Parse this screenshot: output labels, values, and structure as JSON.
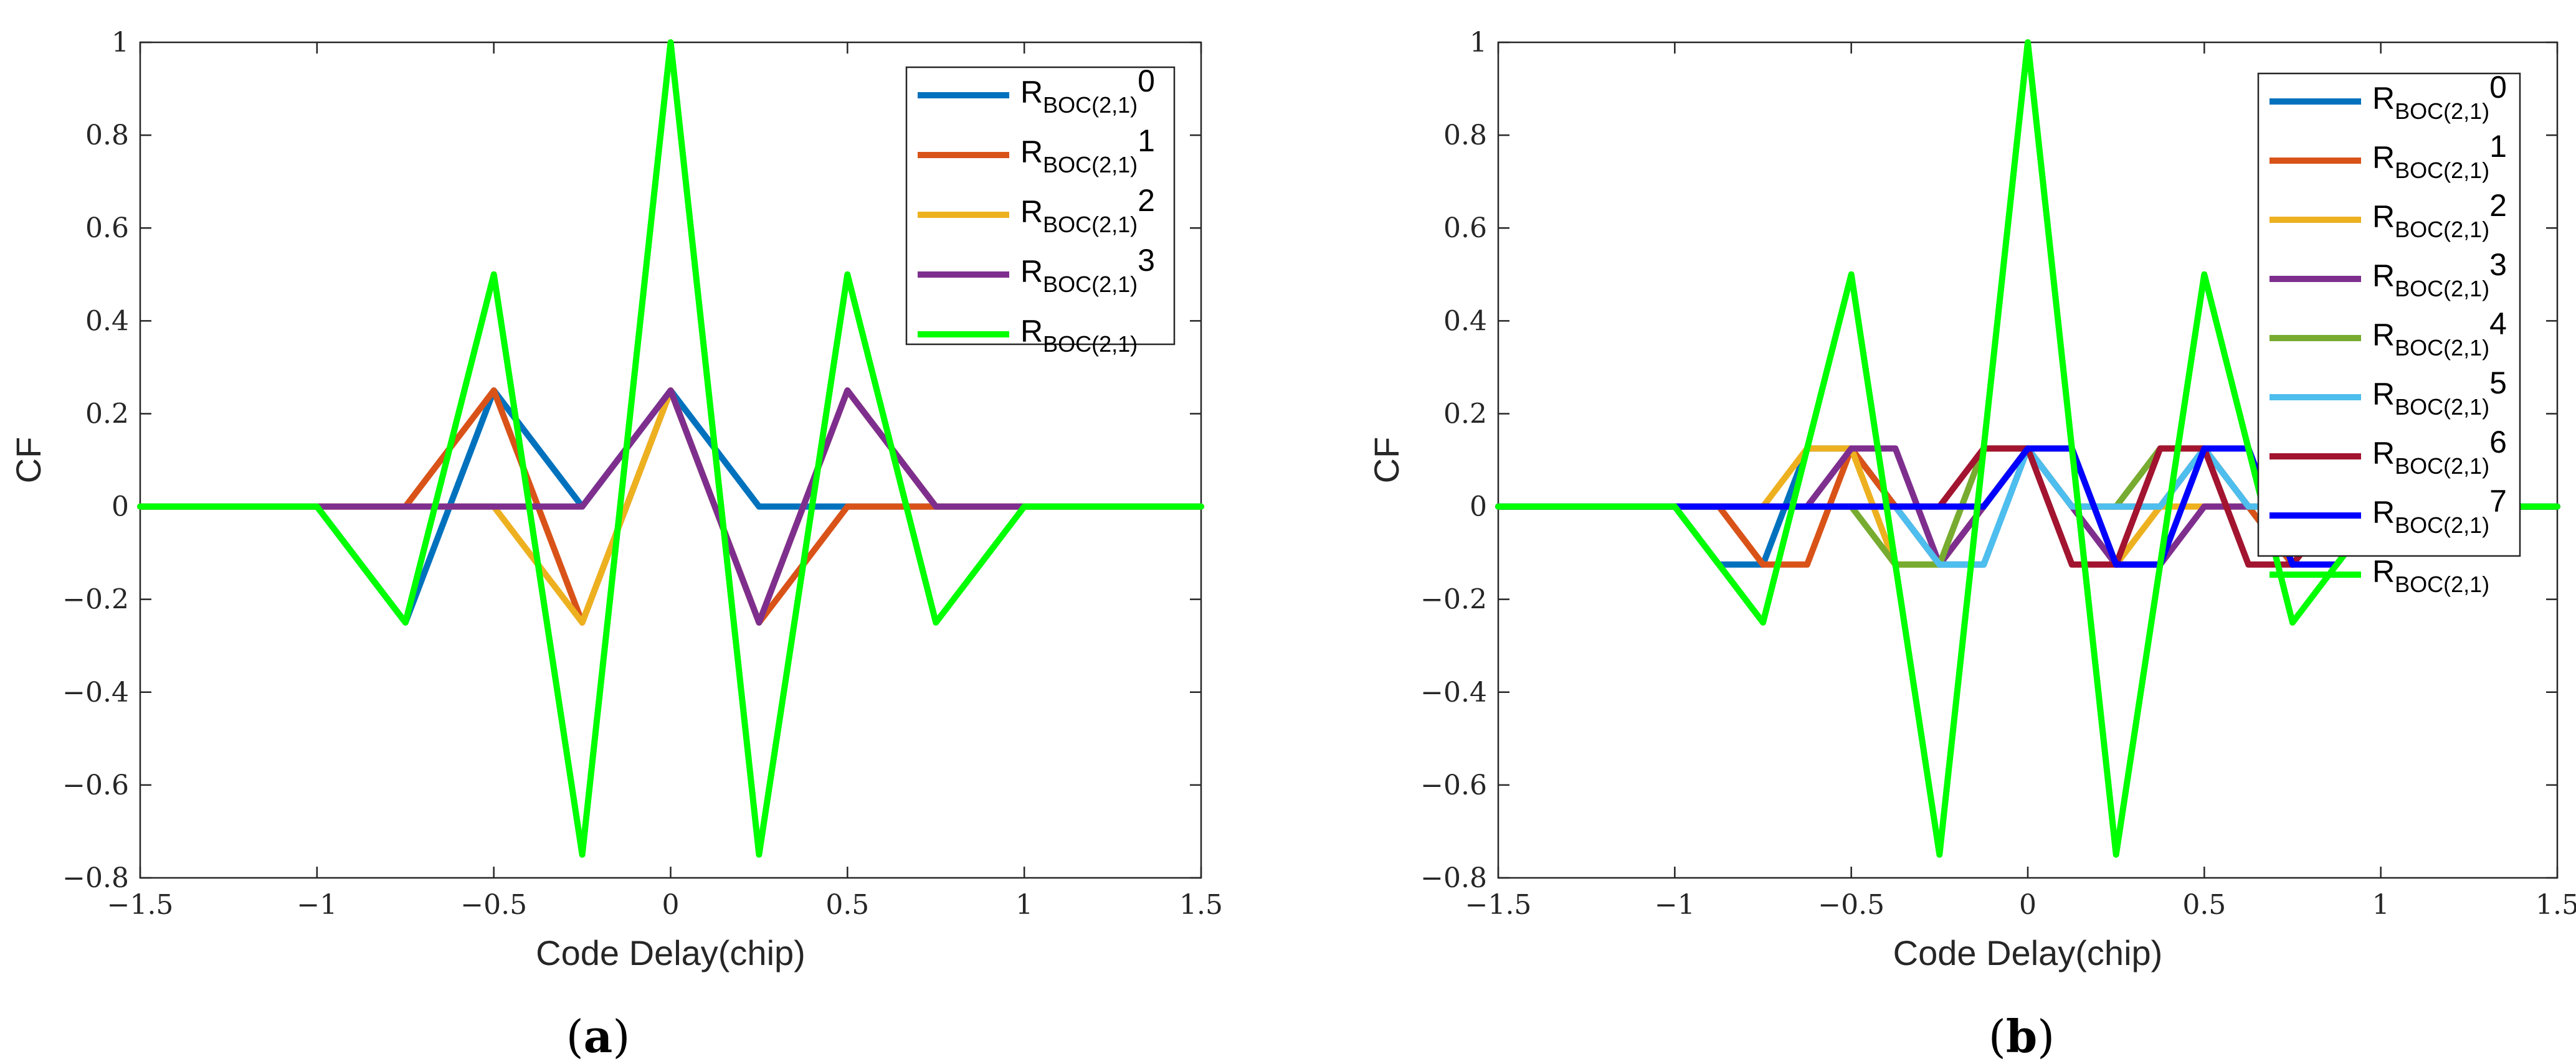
{
  "chart_data": [
    {
      "type": "line",
      "panel_label": "a",
      "xlabel": "Code Delay(chip)",
      "ylabel": "CF",
      "xlim": [
        -1.5,
        1.5
      ],
      "ylim": [
        -0.8,
        1
      ],
      "xticks": [
        "−1.5",
        "−1",
        "−0.5",
        "0",
        "0.5",
        "1",
        "1.5"
      ],
      "yticks": [
        "−0.8",
        "−0.6",
        "−0.4",
        "−0.2",
        "0",
        "0.2",
        "0.4",
        "0.6",
        "0.8",
        "1"
      ],
      "legend_position": "top-right",
      "series": [
        {
          "name_main": "R",
          "name_sub": "BOC(2,1)",
          "name_sup": "0",
          "color": "#0072BD",
          "x": [
            -1.5,
            -1,
            -0.75,
            -0.5,
            -0.25,
            0,
            0.25,
            0.5,
            0.75,
            1,
            1.5
          ],
          "y": [
            0,
            0,
            -0.25,
            0.25,
            0,
            0.25,
            0,
            0,
            0,
            0,
            0
          ]
        },
        {
          "name_main": "R",
          "name_sub": "BOC(2,1)",
          "name_sup": "1",
          "color": "#D95319",
          "x": [
            -1.5,
            -1,
            -0.75,
            -0.5,
            -0.25,
            0,
            0.25,
            0.5,
            0.75,
            1,
            1.5
          ],
          "y": [
            0,
            0,
            0,
            0.25,
            -0.25,
            0.25,
            -0.25,
            0,
            0,
            0,
            0
          ]
        },
        {
          "name_main": "R",
          "name_sub": "BOC(2,1)",
          "name_sup": "2",
          "color": "#EDB120",
          "x": [
            -1.5,
            -1,
            -0.75,
            -0.5,
            -0.25,
            0,
            0.25,
            0.5,
            0.75,
            1,
            1.5
          ],
          "y": [
            0,
            0,
            0,
            0,
            -0.25,
            0.25,
            -0.25,
            0.25,
            0,
            0,
            0
          ]
        },
        {
          "name_main": "R",
          "name_sub": "BOC(2,1)",
          "name_sup": "3",
          "color": "#7E2F8E",
          "x": [
            -1.5,
            -1,
            -0.75,
            -0.5,
            -0.25,
            0,
            0.25,
            0.5,
            0.75,
            1,
            1.5
          ],
          "y": [
            0,
            0,
            0,
            0,
            0,
            0.25,
            -0.25,
            0.25,
            0,
            0,
            0
          ]
        },
        {
          "name_main": "R",
          "name_sub": "BOC(2,1)",
          "name_sup": "",
          "color": "#00FF00",
          "x": [
            -1.5,
            -1,
            -0.75,
            -0.5,
            -0.25,
            0,
            0.25,
            0.5,
            0.75,
            1,
            1.5
          ],
          "y": [
            0,
            0,
            -0.25,
            0.5,
            -0.75,
            1,
            -0.75,
            0.5,
            -0.25,
            0,
            0
          ]
        }
      ]
    },
    {
      "type": "line",
      "panel_label": "b",
      "xlabel": "Code Delay(chip)",
      "ylabel": "CF",
      "xlim": [
        -1.5,
        1.5
      ],
      "ylim": [
        -0.8,
        1
      ],
      "xticks": [
        "−1.5",
        "−1",
        "−0.5",
        "0",
        "0.5",
        "1",
        "1.5"
      ],
      "yticks": [
        "−0.8",
        "−0.6",
        "−0.4",
        "−0.2",
        "0",
        "0.2",
        "0.4",
        "0.6",
        "0.8",
        "1"
      ],
      "legend_position": "top-right",
      "series": [
        {
          "name_main": "R",
          "name_sub": "BOC(2,1)",
          "name_sup": "0",
          "color": "#0072BD",
          "x": [
            -1.5,
            -1,
            -0.875,
            -0.75,
            -0.625,
            -0.5,
            -0.375,
            -0.25,
            -0.125,
            0,
            0.125,
            0.25,
            0.375,
            0.5,
            0.625,
            0.75,
            0.875,
            1,
            1.5
          ],
          "y": [
            0,
            0,
            -0.125,
            -0.125,
            0.125,
            0.125,
            0,
            -0.125,
            -0.125,
            0.125,
            0,
            0,
            0,
            0.125,
            0,
            -0.125,
            0,
            0,
            0
          ]
        },
        {
          "name_main": "R",
          "name_sub": "BOC(2,1)",
          "name_sup": "1",
          "color": "#D95319",
          "x": [
            -1.5,
            -1,
            -0.875,
            -0.75,
            -0.625,
            -0.5,
            -0.375,
            -0.25,
            -0.125,
            0,
            0.125,
            0.25,
            0.375,
            0.5,
            0.625,
            0.75,
            0.875,
            1,
            1.5
          ],
          "y": [
            0,
            0,
            0,
            -0.125,
            -0.125,
            0.125,
            0,
            -0.125,
            0,
            0.125,
            0,
            0,
            0,
            0.125,
            0,
            -0.125,
            0,
            0,
            0
          ]
        },
        {
          "name_main": "R",
          "name_sub": "BOC(2,1)",
          "name_sup": "2",
          "color": "#EDB120",
          "x": [
            -1.5,
            -1,
            -0.875,
            -0.75,
            -0.625,
            -0.5,
            -0.375,
            -0.25,
            -0.125,
            0,
            0.125,
            0.25,
            0.375,
            0.5,
            0.625,
            0.75,
            0.875,
            1,
            1.5
          ],
          "y": [
            0,
            0,
            0,
            0,
            0.125,
            0.125,
            -0.125,
            -0.125,
            0,
            0.125,
            0.125,
            -0.125,
            0,
            0,
            0,
            0,
            0,
            0,
            0
          ]
        },
        {
          "name_main": "R",
          "name_sub": "BOC(2,1)",
          "name_sup": "3",
          "color": "#7E2F8E",
          "x": [
            -1.5,
            -1,
            -0.875,
            -0.75,
            -0.625,
            -0.5,
            -0.375,
            -0.25,
            -0.125,
            0,
            0.125,
            0.25,
            0.375,
            0.5,
            0.625,
            0.75,
            0.875,
            1,
            1.5
          ],
          "y": [
            0,
            0,
            0,
            0,
            0,
            0.125,
            0.125,
            -0.125,
            0,
            0.125,
            0,
            -0.125,
            -0.125,
            0,
            0,
            0,
            0,
            0,
            0
          ]
        },
        {
          "name_main": "R",
          "name_sub": "BOC(2,1)",
          "name_sup": "4",
          "color": "#77AC30",
          "x": [
            -1.5,
            -1,
            -0.875,
            -0.75,
            -0.625,
            -0.5,
            -0.375,
            -0.25,
            -0.125,
            0,
            0.125,
            0.25,
            0.375,
            0.5,
            0.625,
            0.75,
            0.875,
            1,
            1.5
          ],
          "y": [
            0,
            0,
            0,
            0,
            0,
            0,
            -0.125,
            -0.125,
            0.125,
            0.125,
            0,
            0,
            0.125,
            0.125,
            0,
            0,
            0,
            0,
            0
          ]
        },
        {
          "name_main": "R",
          "name_sub": "BOC(2,1)",
          "name_sup": "5",
          "color": "#4DBEEE",
          "x": [
            -1.5,
            -1,
            -0.875,
            -0.75,
            -0.625,
            -0.5,
            -0.375,
            -0.25,
            -0.125,
            0,
            0.125,
            0.25,
            0.375,
            0.5,
            0.625,
            0.75,
            0.875,
            1,
            1.5
          ],
          "y": [
            0,
            0,
            0,
            0,
            0,
            0,
            0,
            -0.125,
            -0.125,
            0.125,
            0,
            0,
            0,
            0.125,
            0,
            0,
            0,
            0,
            0
          ]
        },
        {
          "name_main": "R",
          "name_sub": "BOC(2,1)",
          "name_sup": "6",
          "color": "#A2142F",
          "x": [
            -1.5,
            -1,
            -0.875,
            -0.75,
            -0.625,
            -0.5,
            -0.375,
            -0.25,
            -0.125,
            0,
            0.125,
            0.25,
            0.375,
            0.5,
            0.625,
            0.75,
            0.875,
            1,
            1.5
          ],
          "y": [
            0,
            0,
            0,
            0,
            0,
            0,
            0,
            0,
            0.125,
            0.125,
            -0.125,
            -0.125,
            0.125,
            0.125,
            -0.125,
            -0.125,
            0,
            0,
            0
          ]
        },
        {
          "name_main": "R",
          "name_sub": "BOC(2,1)",
          "name_sup": "7",
          "color": "#0000FF",
          "x": [
            -1.5,
            -1,
            -0.875,
            -0.75,
            -0.625,
            -0.5,
            -0.375,
            -0.25,
            -0.125,
            0,
            0.125,
            0.25,
            0.375,
            0.5,
            0.625,
            0.75,
            0.875,
            1,
            1.5
          ],
          "y": [
            0,
            0,
            0,
            0,
            0,
            0,
            0,
            0,
            0,
            0.125,
            0.125,
            -0.125,
            -0.125,
            0.125,
            0.125,
            -0.125,
            -0.125,
            0,
            0
          ]
        },
        {
          "name_main": "R",
          "name_sub": "BOC(2,1)",
          "name_sup": "",
          "color": "#00FF00",
          "x": [
            -1.5,
            -1,
            -0.75,
            -0.5,
            -0.25,
            0,
            0.25,
            0.5,
            0.75,
            1,
            1.5
          ],
          "y": [
            0,
            0,
            -0.25,
            0.5,
            -0.75,
            1,
            -0.75,
            0.5,
            -0.25,
            0,
            0
          ]
        }
      ]
    }
  ]
}
